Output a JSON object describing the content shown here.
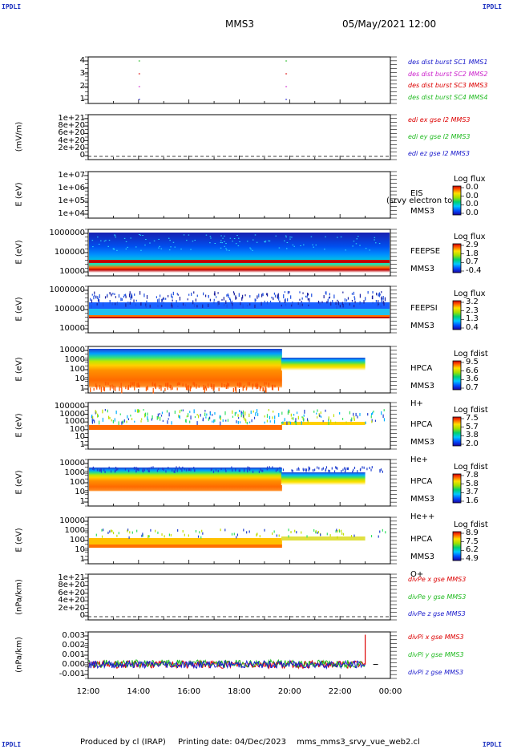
{
  "header": {
    "corner_tl": "IPDLI",
    "corner_tr": "IPDLI",
    "corner_bl": "IPDLI",
    "corner_br": "IPDLI",
    "title": "MMS3",
    "date": "05/May/2021 12:00"
  },
  "footer": {
    "produced": "Produced by cl (IRAP)",
    "printing": "Printing date: 04/Dec/2023",
    "script": "mms_mms3_srvy_vue_web2.cl"
  },
  "xaxis": {
    "ticks": [
      "12:00",
      "14:00",
      "16:00",
      "18:00",
      "20:00",
      "22:00",
      "00:00"
    ]
  },
  "panels": [
    {
      "id": "burst",
      "ylabel": "",
      "yticks": [
        "4",
        "3",
        "2",
        "1"
      ],
      "legend": [
        {
          "text": "des dist burst SC1 MMS1",
          "color": "#1a1acc"
        },
        {
          "text": "des dist burst SC2 MMS2",
          "color": "#cc22cc"
        },
        {
          "text": "des dist burst SC3 MMS3",
          "color": "#dd0000"
        },
        {
          "text": "des dist burst SC4 MMS4",
          "color": "#22bb22"
        }
      ]
    },
    {
      "id": "edi",
      "ylabel": "(mV/m)",
      "yticks": [
        "1e+21",
        "8e+20",
        "6e+20",
        "4e+20",
        "2e+20",
        "0"
      ],
      "legend": [
        {
          "text": "edi ex gse l2 MMS3",
          "color": "#dd0000"
        },
        {
          "text": "edi ey gse l2 MMS3",
          "color": "#22bb22"
        },
        {
          "text": "edi ez gse l2 MMS3",
          "color": "#1a1acc"
        }
      ]
    },
    {
      "id": "eis",
      "ylabel": "E (eV)",
      "yticks": [
        "1e+07",
        "1e+06",
        "1e+05",
        "1e+04"
      ],
      "side": [
        "EIS",
        "MMS3"
      ],
      "overlay": "(srvy electron to",
      "cb_title": "Log flux",
      "cb_ticks": [
        "0.0",
        "0.0",
        "0.0",
        "0.0"
      ]
    },
    {
      "id": "feepse",
      "ylabel": "E (eV)",
      "yticks": [
        "1000000",
        "100000",
        "10000"
      ],
      "side": [
        "FEEPSE",
        "MMS3"
      ],
      "cb_title": "Log flux",
      "cb_ticks": [
        "2.9",
        "1.8",
        "0.7",
        "-0.4"
      ]
    },
    {
      "id": "feepsi",
      "ylabel": "E (eV)",
      "yticks": [
        "1000000",
        "100000",
        "10000"
      ],
      "side": [
        "FEEPSI",
        "MMS3"
      ],
      "cb_title": "Log flux",
      "cb_ticks": [
        "3.2",
        "2.3",
        "1.3",
        "0.4"
      ]
    },
    {
      "id": "hpca_h",
      "ylabel": "E (eV)",
      "yticks": [
        "10000",
        "1000",
        "100",
        "10",
        "1"
      ],
      "side": [
        "HPCA",
        "MMS3",
        "H+"
      ],
      "cb_title": "Log fdist",
      "cb_ticks": [
        "9.5",
        "6.6",
        "3.6",
        "0.7"
      ]
    },
    {
      "id": "hpca_he",
      "ylabel": "E (eV)",
      "yticks": [
        "100000",
        "10000",
        "1000",
        "100",
        "10",
        "1"
      ],
      "side": [
        "HPCA",
        "MMS3",
        "He+"
      ],
      "cb_title": "Log fdist",
      "cb_ticks": [
        "7.5",
        "5.7",
        "3.8",
        "2.0"
      ]
    },
    {
      "id": "hpca_hepp",
      "ylabel": "E (eV)",
      "yticks": [
        "10000",
        "1000",
        "100",
        "10",
        "1"
      ],
      "side": [
        "HPCA",
        "MMS3",
        "He++"
      ],
      "cb_title": "Log fdist",
      "cb_ticks": [
        "7.8",
        "5.8",
        "3.7",
        "1.6"
      ]
    },
    {
      "id": "hpca_o",
      "ylabel": "E (eV)",
      "yticks": [
        "10000",
        "1000",
        "100",
        "10",
        "1"
      ],
      "side": [
        "HPCA",
        "MMS3",
        "O+"
      ],
      "cb_title": "Log fdist",
      "cb_ticks": [
        "8.9",
        "7.5",
        "6.2",
        "4.9"
      ]
    },
    {
      "id": "divpe",
      "ylabel": "(nPa/km)",
      "yticks": [
        "1e+21",
        "8e+20",
        "6e+20",
        "4e+20",
        "2e+20",
        "0"
      ],
      "legend": [
        {
          "text": "divPe x gse MMS3",
          "color": "#dd0000"
        },
        {
          "text": "divPe y gse MMS3",
          "color": "#22bb22"
        },
        {
          "text": "divPe z gse MMS3",
          "color": "#1a1acc"
        }
      ]
    },
    {
      "id": "divpi",
      "ylabel": "(nPa/km)",
      "yticks": [
        "0.003",
        "0.002",
        "0.001",
        "0.000",
        "-0.001"
      ],
      "legend": [
        {
          "text": "divPi x gse MMS3",
          "color": "#dd0000"
        },
        {
          "text": "divPi y gse MMS3",
          "color": "#22bb22"
        },
        {
          "text": "divPi z gse MMS3",
          "color": "#1a1acc"
        }
      ]
    }
  ],
  "chart_data": {
    "type": "heatmap",
    "title": "MMS3",
    "start": "05/May/2021 12:00",
    "x": [
      "12:00",
      "14:00",
      "16:00",
      "18:00",
      "20:00",
      "22:00",
      "00:00"
    ],
    "burst_intervals": [
      {
        "sc": "MMS1",
        "times": [
          "14:00",
          "19:50"
        ]
      },
      {
        "sc": "MMS2",
        "times": [
          "14:00",
          "19:50"
        ]
      },
      {
        "sc": "MMS3",
        "times": [
          "14:00",
          "19:50"
        ]
      },
      {
        "sc": "MMS4",
        "times": [
          "14:00",
          "19:50"
        ]
      }
    ],
    "divPi_ylim": [
      -0.0015,
      0.0035
    ],
    "divPi_spike_time": "23:00",
    "divPi_spike_value": 0.0032,
    "data_end_time": "23:00"
  }
}
